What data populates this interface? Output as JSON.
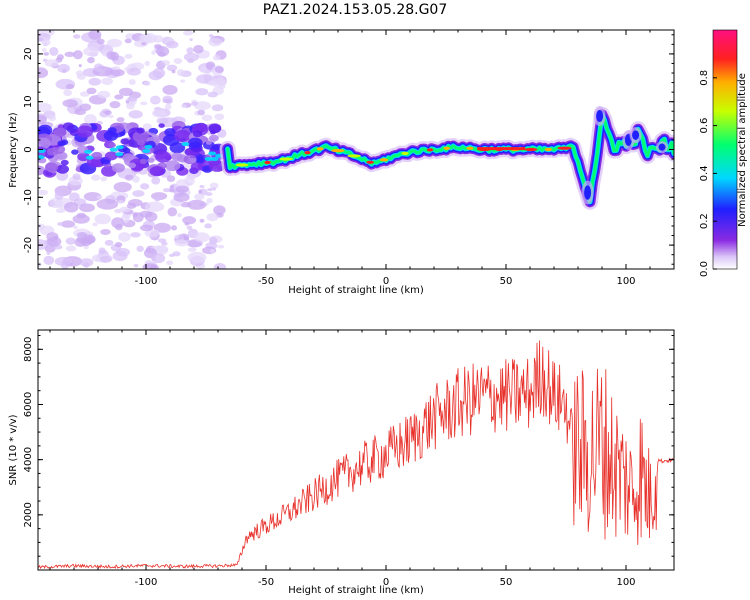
{
  "chart_data": [
    {
      "type": "heatmap",
      "title": "PAZ1.2024.153.05.28.G07",
      "xlabel": "Height of straight line (km)",
      "ylabel": "Frequency (Hz)",
      "colorbar_label": "Normalized spectral amplitude",
      "xlim": [
        -145,
        120
      ],
      "ylim": [
        -25,
        25
      ],
      "clim": [
        0,
        1
      ],
      "colormap": "rainbow (white - purple - blue - cyan - green - yellow - red - magenta)",
      "x_ticks": [
        "-100",
        "-50",
        "0",
        "50",
        "100"
      ],
      "y_ticks": [
        "-20",
        "-10",
        "0",
        "10",
        "20"
      ],
      "colorbar_ticks": [
        "0.0",
        "0.2",
        "0.4",
        "0.6",
        "0.8"
      ],
      "ridge": {
        "x": [
          -65,
          -55,
          -45,
          -35,
          -25,
          -15,
          -5,
          0,
          10,
          20,
          30,
          40,
          50,
          60,
          70,
          78,
          85,
          90,
          95,
          100,
          105,
          110,
          115,
          120
        ],
        "y": [
          -3.5,
          -3.0,
          -2.5,
          -1.0,
          0.5,
          -1.0,
          -3.0,
          -2.0,
          -0.5,
          0.0,
          0.5,
          0.0,
          0.0,
          0.0,
          0.0,
          0.5,
          -10.0,
          6.0,
          1.0,
          1.0,
          3.0,
          -1.0,
          1.0,
          0.5
        ]
      },
      "noise_region": {
        "x": [
          -145,
          -68
        ],
        "y": [
          -25,
          25
        ]
      }
    },
    {
      "type": "line",
      "title": "",
      "xlabel": "Height of straight line (km)",
      "ylabel": "SNR (10 * v/v)",
      "xlim": [
        -145,
        120
      ],
      "ylim": [
        0,
        8700
      ],
      "x_ticks": [
        "-100",
        "-50",
        "0",
        "50",
        "100"
      ],
      "y_ticks": [
        "2000",
        "4000",
        "6000",
        "8000"
      ],
      "color": "#e8302a",
      "series": [
        {
          "x": [
            -145,
            -130,
            -115,
            -100,
            -85,
            -70,
            -62,
            -58,
            -50,
            -40,
            -30,
            -20,
            -10,
            0,
            10,
            20,
            30,
            40,
            50,
            60,
            65,
            70,
            75,
            78,
            82,
            86,
            90,
            95,
            100,
            103,
            106,
            110,
            112,
            115,
            120
          ],
          "y": [
            100,
            150,
            120,
            160,
            130,
            150,
            180,
            1200,
            1600,
            2100,
            2700,
            3300,
            3800,
            4200,
            4700,
            5500,
            6000,
            6300,
            6300,
            6400,
            7200,
            6300,
            6000,
            4500,
            4200,
            4300,
            4600,
            3800,
            3200,
            2800,
            3600,
            2500,
            4000,
            3950,
            4000
          ]
        }
      ]
    }
  ]
}
